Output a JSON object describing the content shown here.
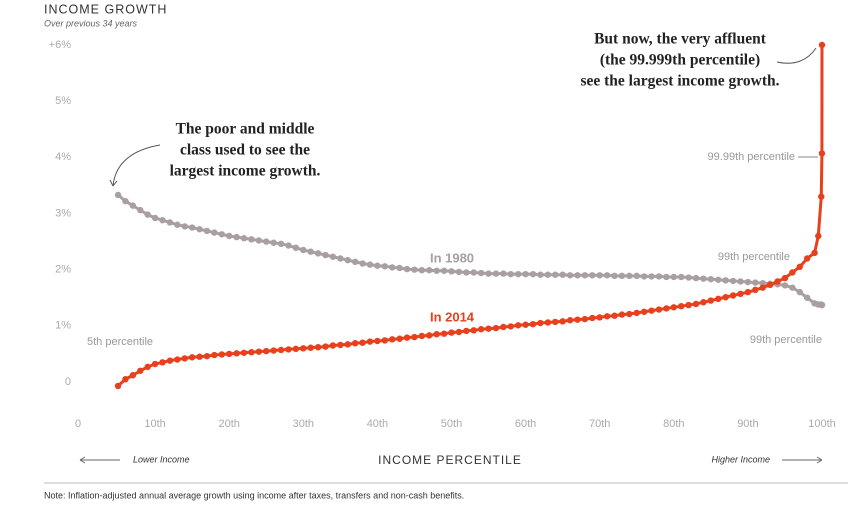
{
  "chart_data": {
    "type": "dotline",
    "title": "INCOME GROWTH",
    "subtitle": "Over previous 34 years",
    "x_label": "INCOME PERCENTILE",
    "x_left_label": "Lower Income",
    "x_right_label": "Higher Income",
    "note": "Note: Inflation-adjusted annual average growth using income after taxes, transfers and non-cash benefits.",
    "x": [
      5,
      6,
      7,
      8,
      9,
      10,
      11,
      12,
      13,
      14,
      15,
      16,
      17,
      18,
      19,
      20,
      21,
      22,
      23,
      24,
      25,
      26,
      27,
      28,
      29,
      30,
      31,
      32,
      33,
      34,
      35,
      36,
      37,
      38,
      39,
      40,
      41,
      42,
      43,
      44,
      45,
      46,
      47,
      48,
      49,
      50,
      51,
      52,
      53,
      54,
      55,
      56,
      57,
      58,
      59,
      60,
      61,
      62,
      63,
      64,
      65,
      66,
      67,
      68,
      69,
      70,
      71,
      72,
      73,
      74,
      75,
      76,
      77,
      78,
      79,
      80,
      81,
      82,
      83,
      84,
      85,
      86,
      87,
      88,
      89,
      90,
      91,
      92,
      93,
      94,
      95,
      96,
      97,
      98,
      99,
      99.5,
      99.9,
      99.99,
      99.999
    ],
    "series": [
      {
        "name": "In 1980",
        "color": "#a99fa2",
        "values": [
          3.33,
          3.22,
          3.14,
          3.06,
          2.98,
          2.92,
          2.88,
          2.84,
          2.8,
          2.77,
          2.75,
          2.72,
          2.69,
          2.66,
          2.63,
          2.6,
          2.58,
          2.56,
          2.54,
          2.52,
          2.5,
          2.48,
          2.46,
          2.43,
          2.39,
          2.35,
          2.32,
          2.29,
          2.26,
          2.23,
          2.2,
          2.17,
          2.14,
          2.11,
          2.09,
          2.07,
          2.06,
          2.04,
          2.03,
          2.01,
          2.0,
          1.99,
          1.99,
          1.98,
          1.98,
          1.97,
          1.96,
          1.95,
          1.95,
          1.94,
          1.93,
          1.93,
          1.93,
          1.92,
          1.92,
          1.92,
          1.92,
          1.91,
          1.91,
          1.91,
          1.91,
          1.9,
          1.9,
          1.9,
          1.9,
          1.9,
          1.9,
          1.89,
          1.89,
          1.89,
          1.89,
          1.88,
          1.88,
          1.88,
          1.87,
          1.87,
          1.87,
          1.86,
          1.85,
          1.84,
          1.83,
          1.82,
          1.81,
          1.8,
          1.79,
          1.78,
          1.77,
          1.76,
          1.75,
          1.74,
          1.72,
          1.68,
          1.6,
          1.5,
          1.4,
          1.38,
          1.38,
          1.37,
          1.37
        ]
      },
      {
        "name": "In 2014",
        "color": "#e8401c",
        "values": [
          -0.07,
          0.05,
          0.12,
          0.2,
          0.27,
          0.32,
          0.35,
          0.38,
          0.4,
          0.42,
          0.44,
          0.45,
          0.46,
          0.48,
          0.49,
          0.5,
          0.51,
          0.52,
          0.53,
          0.54,
          0.55,
          0.56,
          0.57,
          0.58,
          0.59,
          0.6,
          0.61,
          0.62,
          0.63,
          0.65,
          0.66,
          0.67,
          0.69,
          0.7,
          0.72,
          0.73,
          0.74,
          0.76,
          0.77,
          0.79,
          0.8,
          0.82,
          0.83,
          0.85,
          0.86,
          0.88,
          0.89,
          0.91,
          0.92,
          0.94,
          0.95,
          0.96,
          0.98,
          0.99,
          1.01,
          1.02,
          1.03,
          1.05,
          1.06,
          1.07,
          1.08,
          1.1,
          1.11,
          1.12,
          1.14,
          1.15,
          1.17,
          1.18,
          1.2,
          1.21,
          1.23,
          1.25,
          1.27,
          1.29,
          1.31,
          1.33,
          1.35,
          1.37,
          1.39,
          1.42,
          1.45,
          1.48,
          1.51,
          1.54,
          1.57,
          1.6,
          1.64,
          1.68,
          1.73,
          1.79,
          1.85,
          1.95,
          2.05,
          2.2,
          2.3,
          2.6,
          3.3,
          4.07,
          6.0
        ]
      }
    ],
    "xlim": [
      0,
      100
    ],
    "ylim": [
      0,
      6
    ],
    "xticks": [
      0,
      {
        "value": 10,
        "label": "10th"
      },
      {
        "value": 20,
        "label": "20th"
      },
      {
        "value": 30,
        "label": "30th"
      },
      {
        "value": 40,
        "label": "40th"
      },
      {
        "value": 50,
        "label": "50th"
      },
      {
        "value": 60,
        "label": "60th"
      },
      {
        "value": 70,
        "label": "70th"
      },
      {
        "value": 80,
        "label": "80th"
      },
      {
        "value": 90,
        "label": "90th"
      },
      {
        "value": 100,
        "label": "100th"
      }
    ],
    "yticks": [
      0,
      {
        "value": 1,
        "label": "1%"
      },
      {
        "value": 2,
        "label": "2%"
      },
      {
        "value": 3,
        "label": "3%"
      },
      {
        "value": 4,
        "label": "4%"
      },
      {
        "value": 5,
        "label": "5%"
      },
      {
        "value": 6,
        "label": "+6%"
      }
    ],
    "grid": false,
    "annotations": [
      {
        "lines": [
          "The poor and middle",
          "class used to see the",
          "largest income growth."
        ]
      },
      {
        "lines": [
          "But now, the very affluent",
          "(the 99.999th percentile)",
          "see the largest income growth."
        ]
      },
      {
        "lines": [
          "5th percentile"
        ]
      },
      {
        "lines": [
          "99.99th percentile"
        ]
      },
      {
        "lines": [
          "99th percentile"
        ]
      },
      {
        "lines": [
          "99th percentile"
        ]
      }
    ]
  }
}
